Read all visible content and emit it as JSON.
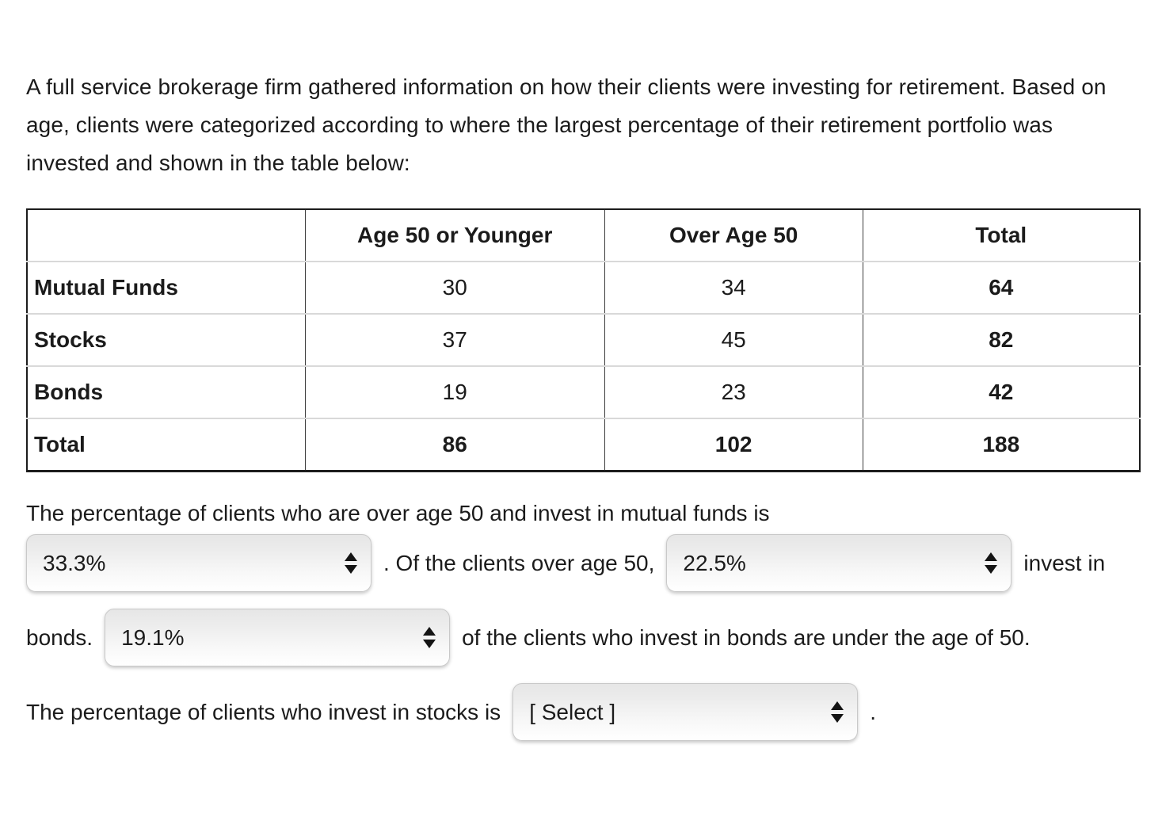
{
  "intro": "A full service brokerage firm gathered information on how their clients were investing for retirement. Based on age, clients were categorized according to where the largest percentage of their retirement portfolio was invested and shown in the table below:",
  "table": {
    "headers": [
      "",
      "Age 50 or Younger",
      "Over Age 50",
      "Total"
    ],
    "rows": [
      {
        "label": "Mutual Funds",
        "values": [
          "30",
          "34",
          "64"
        ]
      },
      {
        "label": "Stocks",
        "values": [
          "37",
          "45",
          "82"
        ]
      },
      {
        "label": "Bonds",
        "values": [
          "19",
          "23",
          "42"
        ]
      },
      {
        "label": "Total",
        "values": [
          "86",
          "102",
          "188"
        ]
      }
    ]
  },
  "question": {
    "sentence1": "The percentage of clients who are over age 50 and invest in mutual funds is",
    "select_mutual_funds_value": "33.3%",
    "sentence2": ". Of the clients over age 50,",
    "select_over50_bonds_value": "22.5%",
    "sentence3": "invest in",
    "sentence4": "bonds.",
    "select_bonds_under50_value": "19.1%",
    "sentence5": "of the clients who invest in bonds are under the age of 50.",
    "sentence6": "The percentage of clients who invest in stocks is",
    "select_stocks_value": "[ Select ]",
    "sentence7": "."
  },
  "colors": {
    "page_background": "#ffffff",
    "text": "#1b1b1b",
    "table_outer_border": "#1c1c1c",
    "table_column_line": "#3c3c3c",
    "table_row_line": "#d9d9d9",
    "select_border": "#c9c9c9",
    "select_gradient_top": "#e6e6e6",
    "select_gradient_bottom": "#ffffff",
    "arrow_icon": "#141414"
  }
}
